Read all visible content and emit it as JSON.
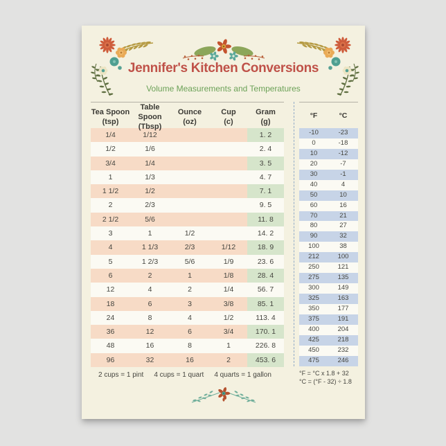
{
  "colors": {
    "page_background": "#e2e2e1",
    "card_background": "#f4f1e0",
    "title": "#bf5148",
    "subtitle": "#6ba157",
    "volume_row_shade": "#f7dbc6",
    "gram_cell_shade": "#d6e5cb",
    "temperature_row_shade": "#c7d4e7"
  },
  "header": {
    "title": "Jennifer's Kitchen Conversions",
    "subtitle": "Volume Measurements and Temperatures"
  },
  "decorations": {
    "top_left": "floral-corner-left",
    "top_center": "floral-garland",
    "top_right": "floral-corner-right",
    "bottom_center": "floral-sprig"
  },
  "volume_table": {
    "columns": [
      {
        "name": "Tea Spoon",
        "unit": "(tsp)"
      },
      {
        "name": "Table Spoon",
        "unit": "(Tbsp)"
      },
      {
        "name": "Ounce",
        "unit": "(oz)"
      },
      {
        "name": "Cup",
        "unit": "(c)"
      },
      {
        "name": "Gram",
        "unit": "(g)"
      }
    ],
    "rows": [
      [
        "1/4",
        "1/12",
        "",
        "",
        "1. 2"
      ],
      [
        "1/2",
        "1/6",
        "",
        "",
        "2. 4"
      ],
      [
        "3/4",
        "1/4",
        "",
        "",
        "3. 5"
      ],
      [
        "1",
        "1/3",
        "",
        "",
        "4. 7"
      ],
      [
        "1 1/2",
        "1/2",
        "",
        "",
        "7. 1"
      ],
      [
        "2",
        "2/3",
        "",
        "",
        "9. 5"
      ],
      [
        "2 1/2",
        "5/6",
        "",
        "",
        "11. 8"
      ],
      [
        "3",
        "1",
        "1/2",
        "",
        "14. 2"
      ],
      [
        "4",
        "1 1/3",
        "2/3",
        "1/12",
        "18. 9"
      ],
      [
        "5",
        "1 2/3",
        "5/6",
        "1/9",
        "23. 6"
      ],
      [
        "6",
        "2",
        "1",
        "1/8",
        "28. 4"
      ],
      [
        "12",
        "4",
        "2",
        "1/4",
        "56. 7"
      ],
      [
        "18",
        "6",
        "3",
        "3/8",
        "85. 1"
      ],
      [
        "24",
        "8",
        "4",
        "1/2",
        "113. 4"
      ],
      [
        "36",
        "12",
        "6",
        "3/4",
        "170. 1"
      ],
      [
        "48",
        "16",
        "8",
        "1",
        "226. 8"
      ],
      [
        "96",
        "32",
        "16",
        "2",
        "453. 6"
      ]
    ],
    "notes": [
      "2 cups = 1 pint",
      "4 cups = 1 quart",
      "4 quarts = 1 gallon"
    ]
  },
  "temperature_table": {
    "columns": [
      "°F",
      "°C"
    ],
    "rows": [
      [
        "-10",
        "-23"
      ],
      [
        "0",
        "-18"
      ],
      [
        "10",
        "-12"
      ],
      [
        "20",
        "-7"
      ],
      [
        "30",
        "-1"
      ],
      [
        "40",
        "4"
      ],
      [
        "50",
        "10"
      ],
      [
        "60",
        "16"
      ],
      [
        "70",
        "21"
      ],
      [
        "80",
        "27"
      ],
      [
        "90",
        "32"
      ],
      [
        "100",
        "38"
      ],
      [
        "212",
        "100"
      ],
      [
        "250",
        "121"
      ],
      [
        "275",
        "135"
      ],
      [
        "300",
        "149"
      ],
      [
        "325",
        "163"
      ],
      [
        "350",
        "177"
      ],
      [
        "375",
        "191"
      ],
      [
        "400",
        "204"
      ],
      [
        "425",
        "218"
      ],
      [
        "450",
        "232"
      ],
      [
        "475",
        "246"
      ]
    ],
    "formulas": [
      "°F = °C x 1.8 + 32",
      "°C = (°F - 32) ÷ 1.8"
    ]
  }
}
